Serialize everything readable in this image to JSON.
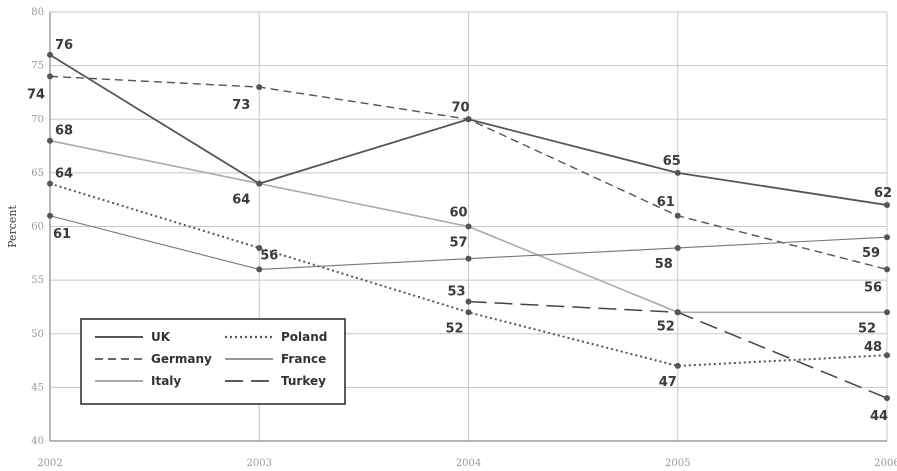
{
  "chart_data": {
    "type": "line",
    "x": [
      2002,
      2003,
      2004,
      2005,
      2006
    ],
    "x_tick_labels": [
      "2002",
      "2003",
      "2004",
      "2005",
      "2006"
    ],
    "ylabel": "Percent",
    "ylim": [
      40,
      80
    ],
    "y_ticks": [
      40,
      45,
      50,
      55,
      60,
      65,
      70,
      75,
      80
    ],
    "grid": true,
    "legend_position": "bottom-left",
    "series": [
      {
        "name": "UK",
        "style": "solid",
        "color": "#555555",
        "values": [
          76,
          64,
          70,
          65,
          62
        ],
        "labels": [
          "76",
          "64",
          "70",
          "65",
          "62"
        ]
      },
      {
        "name": "Germany",
        "style": "dashed",
        "color": "#555555",
        "values": [
          74,
          73,
          70,
          61,
          56
        ],
        "labels": [
          "74",
          "73",
          "",
          "61",
          "56"
        ]
      },
      {
        "name": "Italy",
        "style": "solid-light",
        "color": "#aaaaaa",
        "values": [
          68,
          64,
          60,
          52,
          52
        ],
        "labels": [
          "68",
          "",
          "60",
          "52",
          "52"
        ]
      },
      {
        "name": "Poland",
        "style": "dotted",
        "color": "#555555",
        "values": [
          64,
          58,
          52,
          47,
          48
        ],
        "labels": [
          "64",
          "",
          "52",
          "47",
          "48"
        ]
      },
      {
        "name": "France",
        "style": "solid-thin",
        "color": "#777777",
        "values": [
          61,
          56,
          57,
          58,
          59
        ],
        "labels": [
          "61",
          "56",
          "57",
          "58",
          "59"
        ]
      },
      {
        "name": "Turkey",
        "style": "long-dash",
        "color": "#444444",
        "values": [
          null,
          null,
          53,
          52,
          44
        ],
        "labels": [
          "",
          "",
          "53",
          "",
          "44"
        ]
      }
    ]
  }
}
